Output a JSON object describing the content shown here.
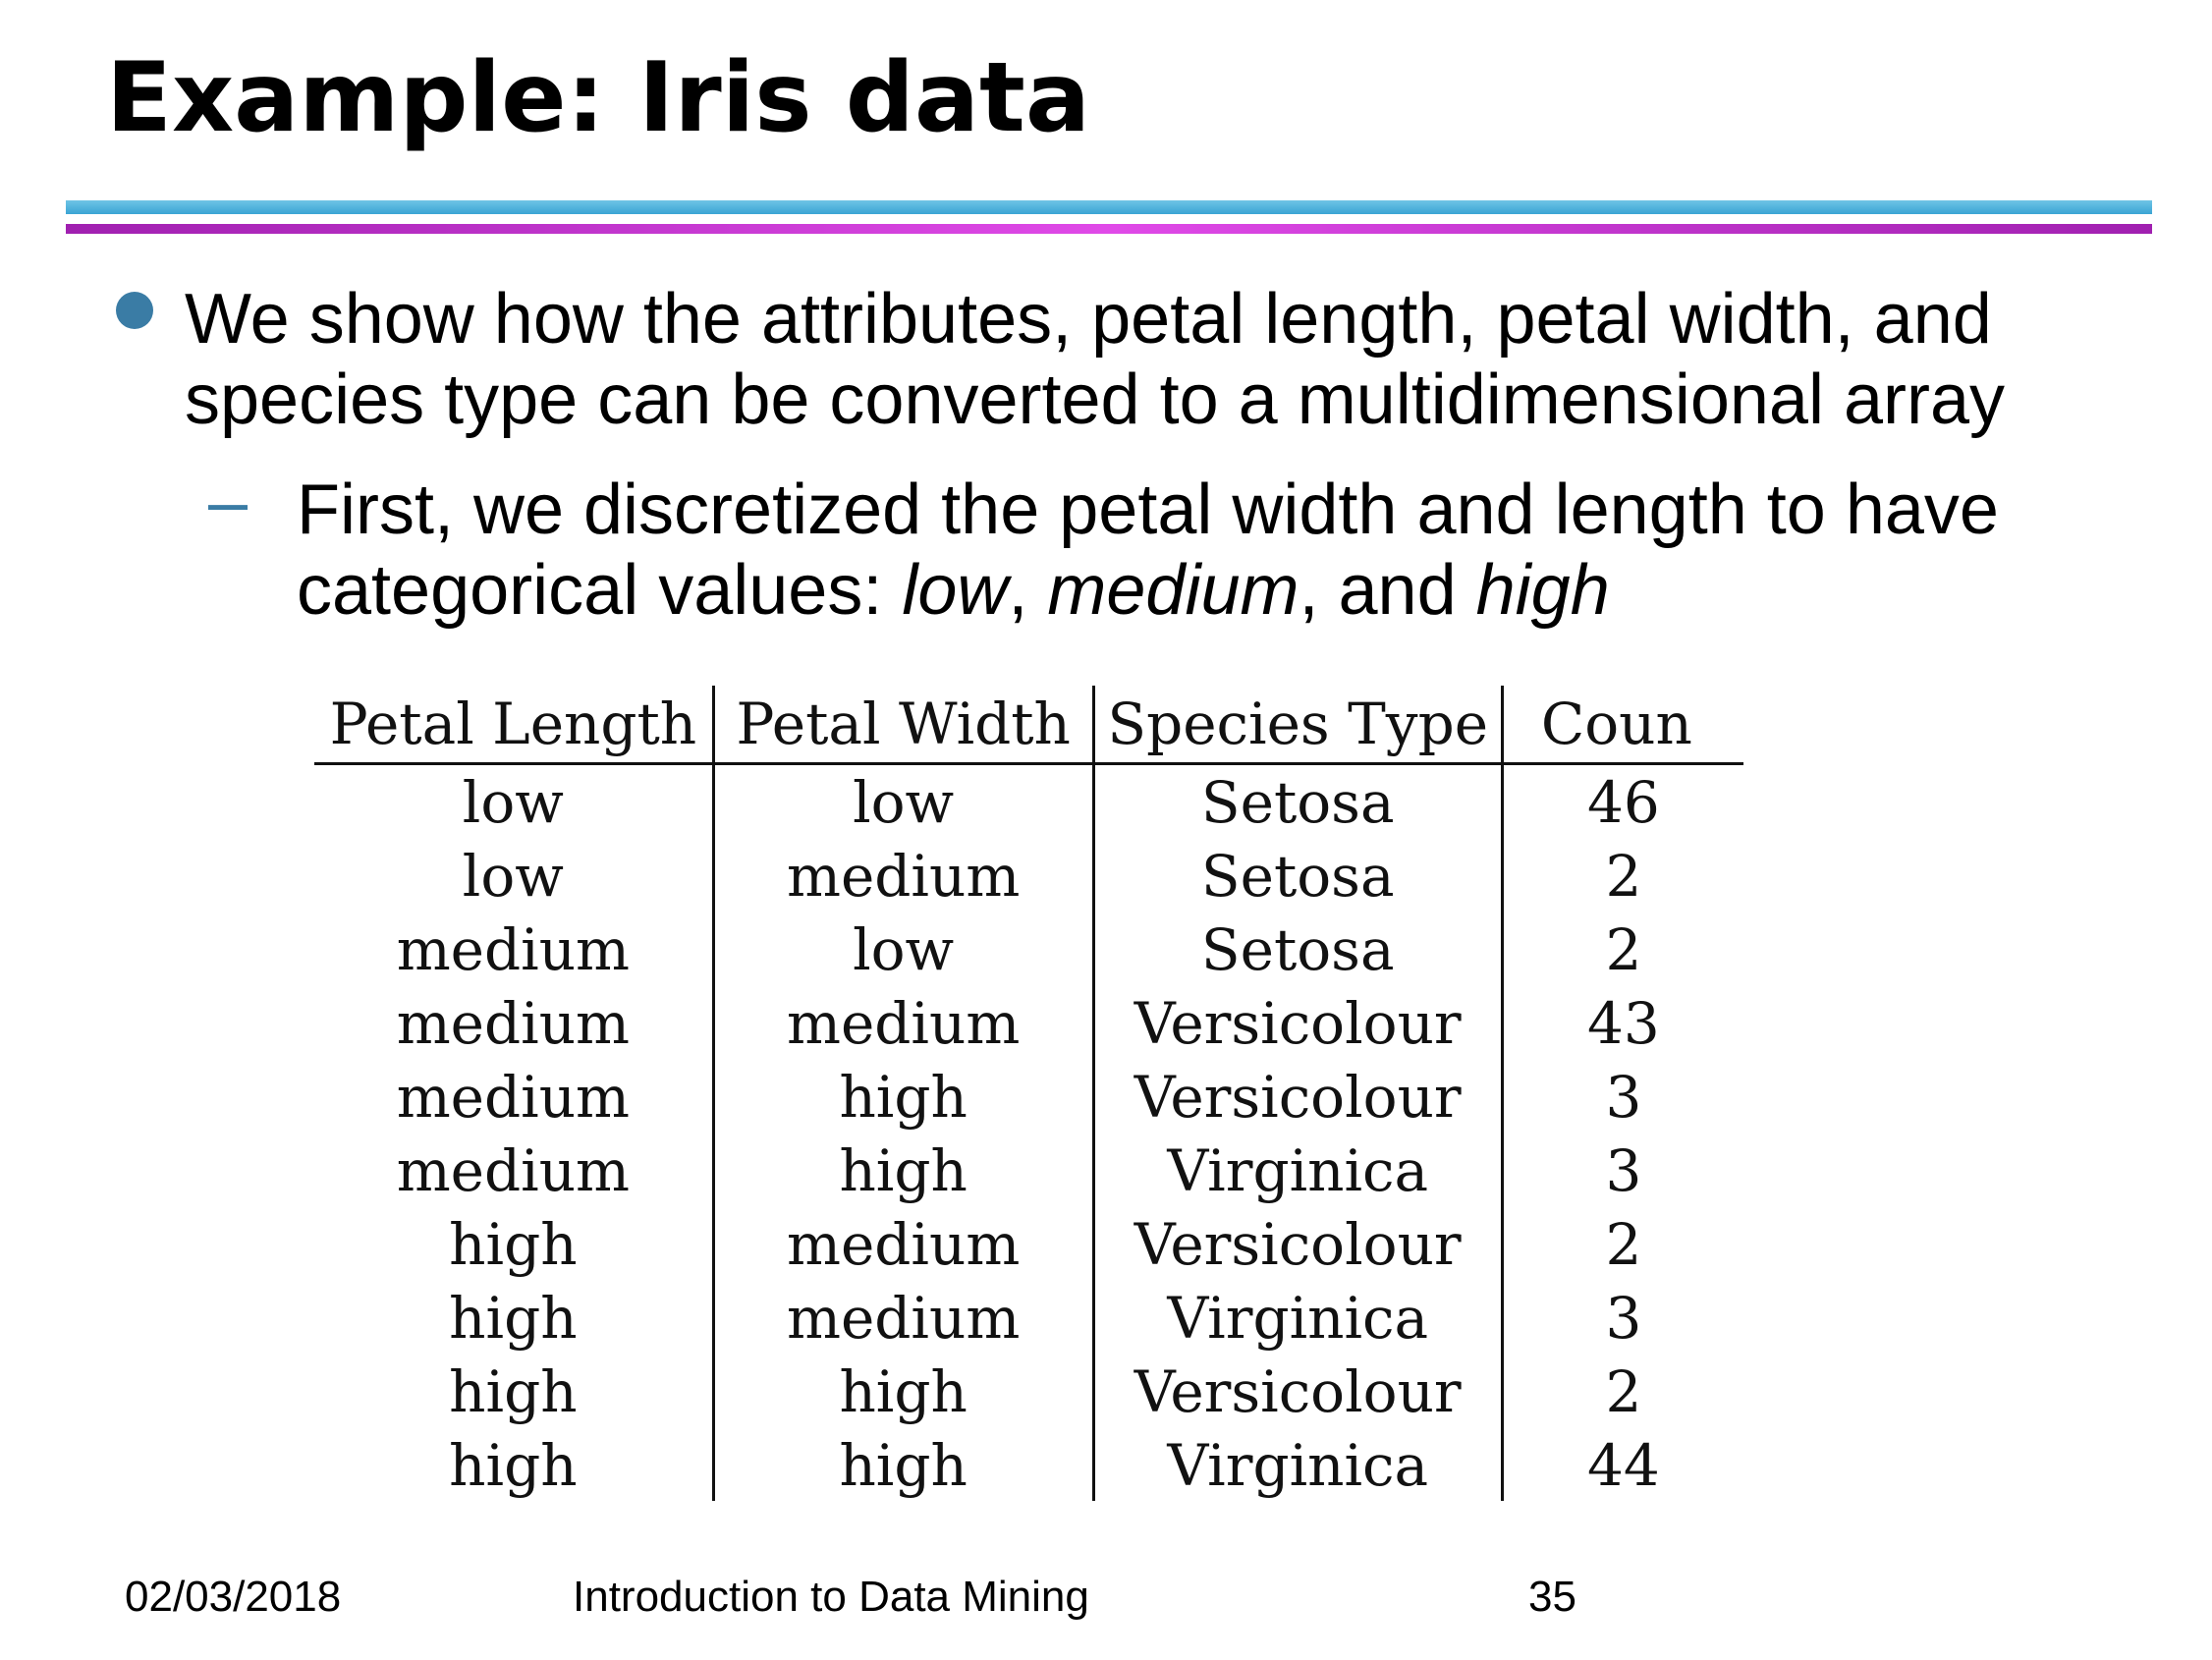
{
  "slide": {
    "title": "Example: Iris data",
    "bullet": {
      "text": "We show how the attributes, petal length, petal width, and species type can be converted to a multidimensional array",
      "sub": {
        "prefix": "First, we discretized the petal width and length to have categorical values: ",
        "term1": "low",
        "sep1": ", ",
        "term2": "medium",
        "sep2": ", and ",
        "term3": "high"
      }
    },
    "table": {
      "headers": [
        "Petal Length",
        "Petal Width",
        "Species Type",
        "Coun"
      ],
      "rows": [
        [
          "low",
          "low",
          "Setosa",
          "46"
        ],
        [
          "low",
          "medium",
          "Setosa",
          "2"
        ],
        [
          "medium",
          "low",
          "Setosa",
          "2"
        ],
        [
          "medium",
          "medium",
          "Versicolour",
          "43"
        ],
        [
          "medium",
          "high",
          "Versicolour",
          "3"
        ],
        [
          "medium",
          "high",
          "Virginica",
          "3"
        ],
        [
          "high",
          "medium",
          "Versicolour",
          "2"
        ],
        [
          "high",
          "medium",
          "Virginica",
          "3"
        ],
        [
          "high",
          "high",
          "Versicolour",
          "2"
        ],
        [
          "high",
          "high",
          "Virginica",
          "44"
        ]
      ]
    },
    "footer": {
      "date": "02/03/2018",
      "course": "Introduction to Data Mining",
      "page": "35"
    },
    "colors": {
      "bullet": "#3a7ca5",
      "rule_top": "#3aa4d4",
      "rule_bottom": "#c43ad4"
    }
  }
}
